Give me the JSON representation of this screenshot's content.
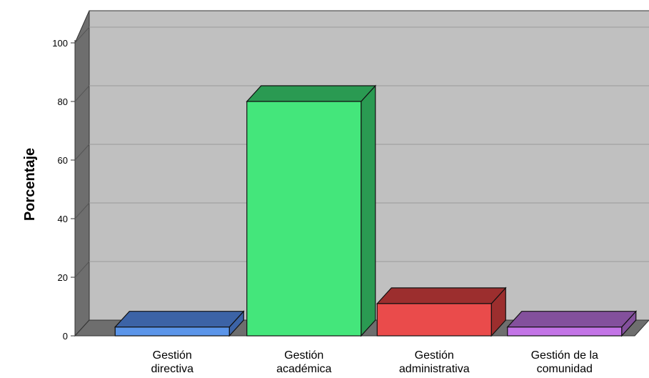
{
  "chart_data": {
    "type": "bar",
    "title": "",
    "xlabel": "",
    "ylabel": "Porcentaje",
    "ylim": [
      0,
      100
    ],
    "yticks": [
      0,
      20,
      40,
      60,
      80,
      100
    ],
    "grid": true,
    "style": "3d",
    "categories": [
      [
        "Gestión",
        "directiva"
      ],
      [
        "Gestión",
        "académica"
      ],
      [
        "Gestión",
        "administrativa"
      ],
      [
        "Gestión de la",
        "comunidad"
      ]
    ],
    "values": [
      3,
      80,
      11,
      3
    ],
    "colors": [
      {
        "front": "#5b95e9",
        "top": "#3c63a6",
        "side": "#3c63a6"
      },
      {
        "front": "#44e67b",
        "top": "#2a9a52",
        "side": "#2a9a52"
      },
      {
        "front": "#ea4b4b",
        "top": "#9c2e2e",
        "side": "#9c2e2e"
      },
      {
        "front": "#c374e6",
        "top": "#83509c",
        "side": "#83509c"
      }
    ]
  }
}
